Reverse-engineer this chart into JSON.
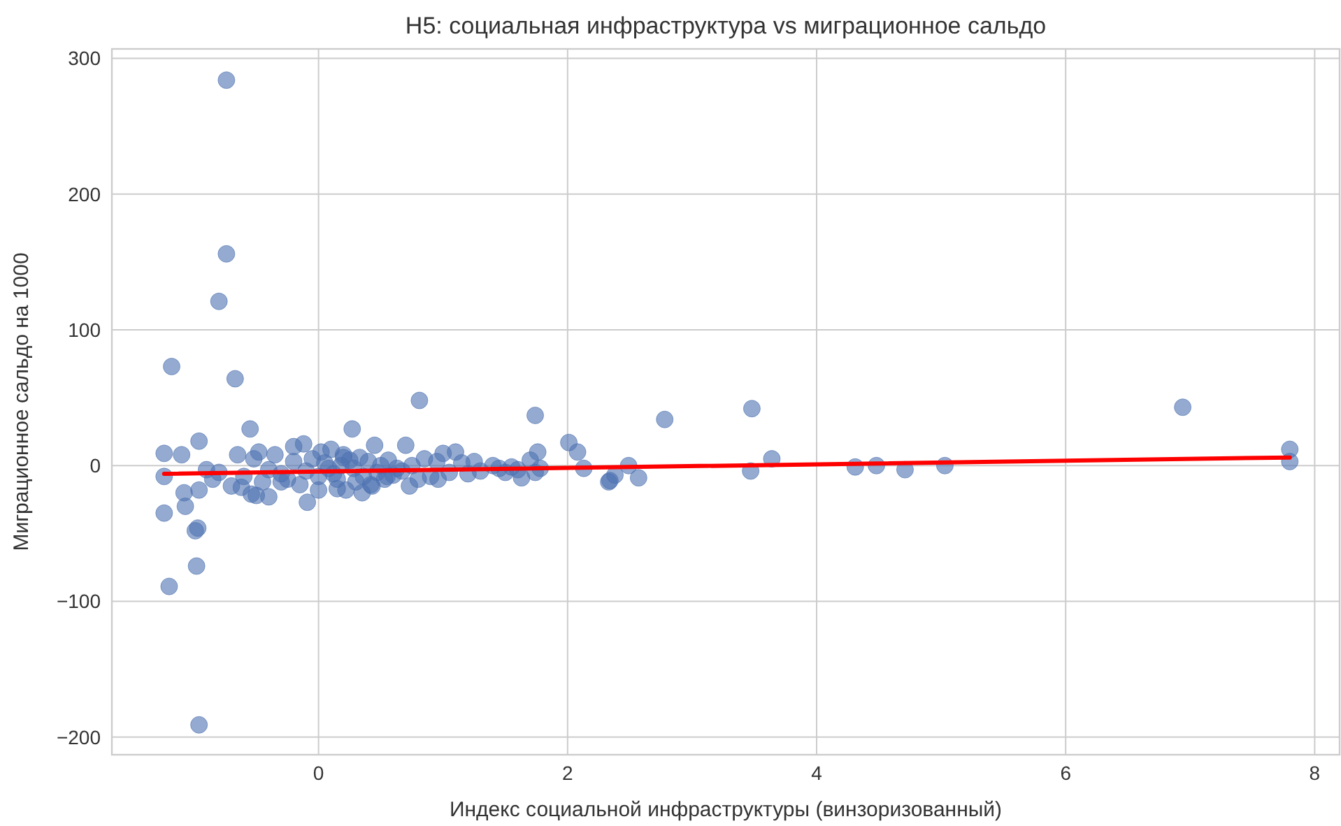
{
  "chart_data": {
    "type": "scatter",
    "title": "H5: социальная инфраструктура vs миграционное сальдо",
    "xlabel": "Индекс социальной инфраструктуры (винзоризованный)",
    "ylabel": "Миграционное сальдо на 1000",
    "xlim": [
      -1.66,
      8.2
    ],
    "ylim": [
      -213,
      307
    ],
    "xticks": [
      0,
      2,
      4,
      6,
      8
    ],
    "yticks": [
      {
        "value": -200,
        "label": "−200"
      },
      {
        "value": -100,
        "label": "−100"
      },
      0,
      100,
      200,
      300
    ],
    "grid": true,
    "marker": "circle",
    "series": [
      {
        "color": "#4c72b0",
        "x": [
          -0.74,
          -0.74,
          -0.8,
          -1.18,
          -0.67,
          -0.55,
          0.81,
          1.74,
          2.78,
          3.48,
          6.94,
          7.8,
          7.8,
          3.64,
          3.47,
          4.31,
          4.48,
          4.71,
          5.03,
          2.57,
          2.49,
          2.38,
          2.33,
          2.01,
          2.08,
          2.13,
          2.34,
          1.76,
          1.74,
          1.63,
          1.1,
          0.7,
          0.45,
          0.27,
          0.73,
          0.96,
          -1.24,
          -1.1,
          -0.96,
          -1.24,
          -1.08,
          -1.07,
          -1.24,
          -0.99,
          -0.97,
          -0.96,
          -0.09,
          -0.54,
          -0.4,
          -0.12,
          -0.98,
          -1.2,
          -0.96,
          -0.9,
          -0.85,
          -0.8,
          -0.7,
          -0.65,
          -0.6,
          -0.52,
          -0.48,
          -0.45,
          -0.4,
          -0.35,
          -0.3,
          -0.25,
          -0.2,
          -0.15,
          -0.1,
          -0.05,
          0,
          0.02,
          0.05,
          0.08,
          0.1,
          0.12,
          0.15,
          0.18,
          0.2,
          0.22,
          0.25,
          0.28,
          0.3,
          0.33,
          0.36,
          0.4,
          0.43,
          0.47,
          0.5,
          0.53,
          0.56,
          0.6,
          0.63,
          0.67,
          0.75,
          0.8,
          0.85,
          0.9,
          0.95,
          1.0,
          1.05,
          1.15,
          1.2,
          1.25,
          1.3,
          1.4,
          1.45,
          1.5,
          1.55,
          1.6,
          1.7,
          1.78,
          -0.62,
          -0.3,
          0.0,
          0.2,
          0.35,
          0.55,
          -0.2,
          0.15,
          -0.5,
          0.42
        ],
        "values": [
          284,
          156,
          121,
          73,
          64,
          27,
          48,
          37,
          34,
          42,
          43,
          12,
          3,
          5,
          -4,
          -1,
          0,
          -3,
          0,
          -9,
          0,
          -7,
          -12,
          17,
          10,
          -2,
          -11,
          10,
          -5,
          -9,
          10,
          15,
          15,
          27,
          -15,
          -10,
          9,
          8,
          18,
          -8,
          -20,
          -30,
          -35,
          -48,
          -46,
          -18,
          -27,
          -21,
          -23,
          16,
          -74,
          -89,
          -191,
          -3,
          -10,
          -5,
          -15,
          8,
          -8,
          5,
          10,
          -12,
          -3,
          8,
          -6,
          -10,
          3,
          -14,
          -4,
          5,
          -8,
          10,
          2,
          -2,
          12,
          -6,
          -10,
          0,
          8,
          -18,
          4,
          -2,
          -12,
          6,
          -8,
          3,
          -15,
          -5,
          0,
          -10,
          4,
          -7,
          -2,
          -4,
          0,
          -10,
          5,
          -8,
          3,
          9,
          -5,
          2,
          -6,
          3,
          -4,
          0,
          -2,
          -5,
          -1,
          -3,
          4,
          -2,
          -16,
          -12,
          -18,
          6,
          -20,
          -8,
          14,
          -17,
          -22,
          -14
        ]
      },
      {
        "type": "line",
        "color": "#ff0000",
        "x": [
          -1.24,
          7.8
        ],
        "values": [
          -6,
          6
        ],
        "marker": "none"
      }
    ]
  }
}
